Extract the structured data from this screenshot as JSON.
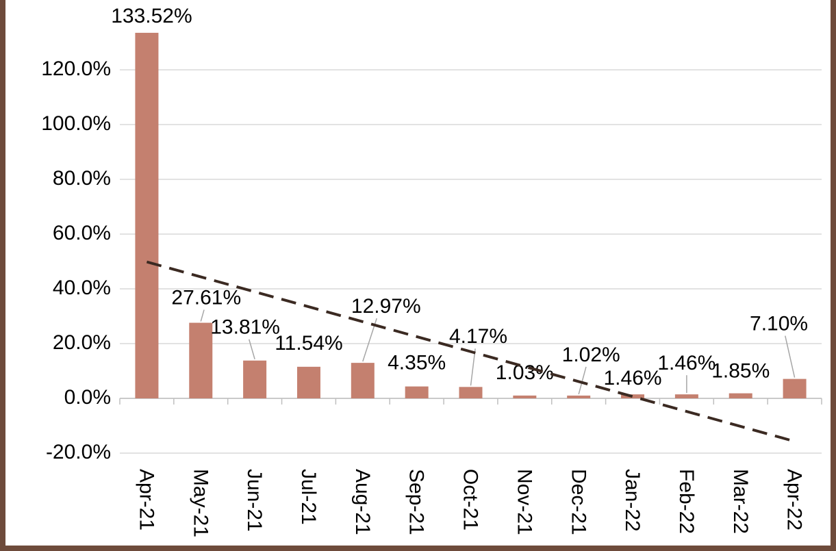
{
  "chart_data": {
    "type": "bar",
    "categories": [
      "Apr-21",
      "May-21",
      "Jun-21",
      "Jul-21",
      "Aug-21",
      "Sep-21",
      "Oct-21",
      "Nov-21",
      "Dec-21",
      "Jan-22",
      "Feb-22",
      "Mar-22",
      "Apr-22"
    ],
    "values": [
      133.52,
      27.61,
      13.81,
      11.54,
      12.97,
      4.35,
      4.17,
      1.03,
      1.02,
      1.46,
      1.46,
      1.85,
      7.1
    ],
    "value_labels": [
      "133.52%",
      "27.61%",
      "13.81%",
      "11.54%",
      "12.97%",
      "4.35%",
      "4.17%",
      "1.03%",
      "1.02%",
      "1.46%",
      "1.46%",
      "1.85%",
      "7.10%"
    ],
    "color": "#c4806f",
    "ylim": [
      -20,
      140
    ],
    "yticks": [
      {
        "value": -20,
        "label": "-20.0%"
      },
      {
        "value": 0,
        "label": "0.0%"
      },
      {
        "value": 20,
        "label": "20.0%"
      },
      {
        "value": 40,
        "label": "40.0%"
      },
      {
        "value": 60,
        "label": "60.0%"
      },
      {
        "value": 80,
        "label": "80.0%"
      },
      {
        "value": 100,
        "label": "100.0%"
      },
      {
        "value": 120,
        "label": "120.0%"
      }
    ],
    "grid": true,
    "trendline": "linear",
    "trendline_color": "#3b2a22"
  }
}
